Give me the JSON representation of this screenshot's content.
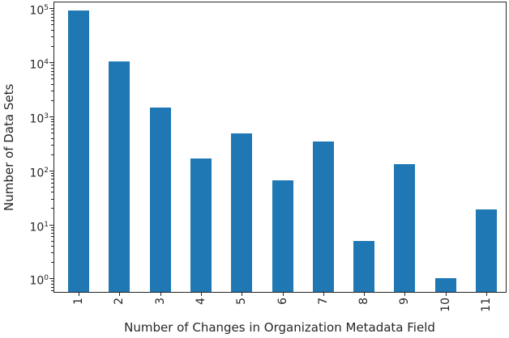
{
  "chart_data": {
    "type": "bar",
    "title": "",
    "xlabel": "Number of Changes in Organization Metadata Field",
    "ylabel": "Number of Data Sets",
    "categories": [
      "1",
      "2",
      "3",
      "4",
      "5",
      "6",
      "7",
      "8",
      "9",
      "10",
      "11"
    ],
    "values": [
      90000,
      10500,
      1450,
      165,
      480,
      66,
      340,
      5,
      130,
      1,
      19
    ],
    "yscale": "log",
    "ylim": [
      0.562,
      129000
    ],
    "y_major_tick_exponents": [
      0,
      1,
      2,
      3,
      4,
      5
    ],
    "y_minor_tick_subs": [
      2,
      3,
      4,
      5,
      6,
      7,
      8,
      9
    ],
    "x_tick_rotation_deg": 90,
    "grid": false,
    "legend_position": "none",
    "bar_color": "#1f77b4",
    "axis_color": "#262626",
    "text_color": "#262626",
    "background": "#ffffff"
  }
}
